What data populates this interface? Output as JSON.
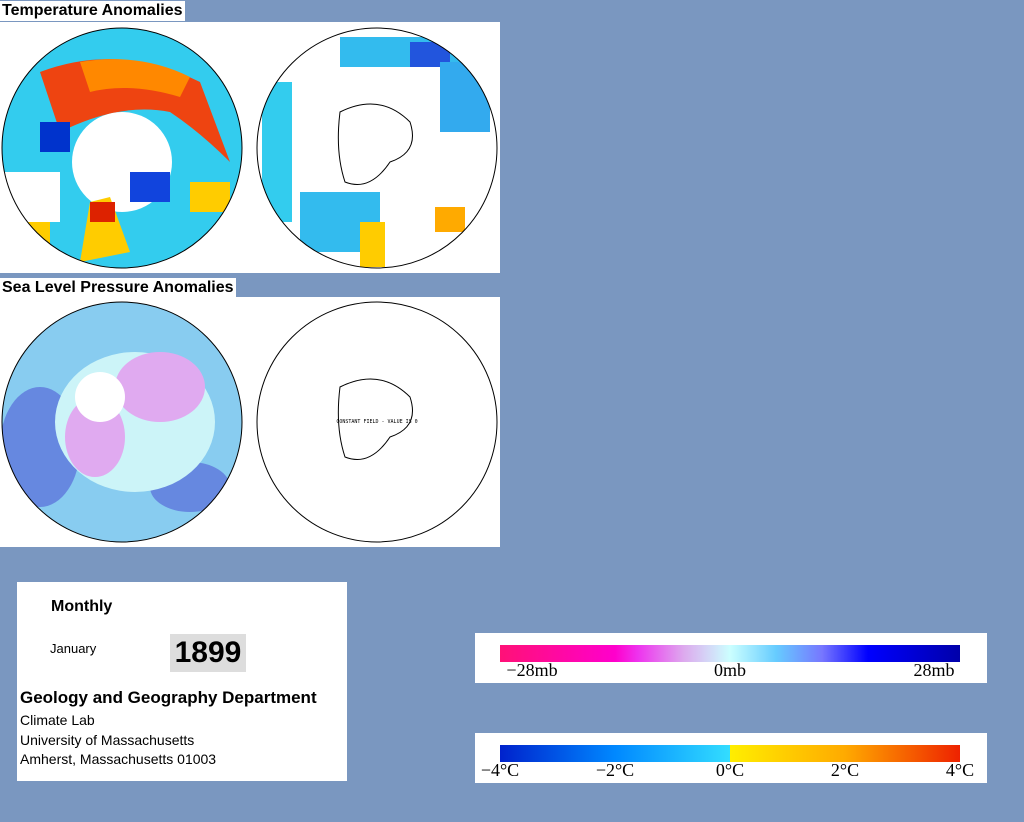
{
  "panels": {
    "temperature_title": "Temperature Anomalies",
    "pressure_title": "Sea Level Pressure Anomalies",
    "constant_field": "CONSTANT FIELD - VALUE IS 0"
  },
  "info": {
    "period": "Monthly",
    "month": "January",
    "year": "1899",
    "department": "Geology and Geography Department",
    "lines": [
      "Climate Lab",
      "University of Massachusetts",
      "Amherst, Massachusetts 01003"
    ]
  },
  "pressure_scale": {
    "labels": [
      "−28mb",
      "0mb",
      "28mb"
    ]
  },
  "temperature_scale": {
    "labels": [
      "−4°C",
      "−2°C",
      "0°C",
      "2°C",
      "4°C"
    ]
  }
}
